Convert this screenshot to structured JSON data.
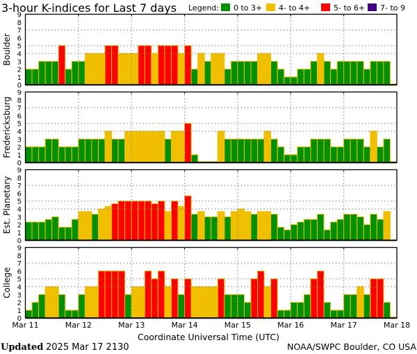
{
  "chart_data": {
    "type": "bar",
    "title": "3-hour K-indices for Last 7 days",
    "xlabel": "Coordinate Universal Time (UTC)",
    "x_tick_labels": [
      "Mar 11",
      "Mar 12",
      "Mar 13",
      "Mar 14",
      "Mar 15",
      "Mar 16",
      "Mar 17",
      "Mar 18"
    ],
    "y_tick_labels": [
      "0",
      "1",
      "2",
      "3",
      "4",
      "5",
      "6",
      "7",
      "8",
      "9"
    ],
    "ylim": [
      0,
      9
    ],
    "interval_hours": 3,
    "grid": {
      "horizontal_at": [
        4,
        5,
        7
      ],
      "vertical": "daily"
    },
    "legend": {
      "label": "Legend:",
      "placement": "top-right",
      "entries": [
        {
          "label": "0 to 3+",
          "color": "#009000"
        },
        {
          "label": "4- to 4+",
          "color": "#f0c000"
        },
        {
          "label": "5- to 6+",
          "color": "#ff0000"
        },
        {
          "label": "7- to 9",
          "color": "#400080"
        }
      ]
    },
    "series": [
      {
        "name": "Boulder",
        "values": [
          2,
          2,
          3,
          3,
          3,
          5,
          2,
          3,
          3,
          4,
          4,
          4,
          5,
          5,
          4,
          4,
          4,
          5,
          5,
          4,
          5,
          5,
          5,
          4,
          5,
          2,
          4,
          3,
          4,
          4,
          2,
          3,
          3,
          3,
          3,
          4,
          4,
          3,
          2,
          1,
          1,
          2,
          2,
          3,
          4,
          3,
          2,
          3,
          3,
          3,
          3,
          2,
          3,
          3,
          3,
          0
        ]
      },
      {
        "name": "Fredericksburg",
        "values": [
          2,
          2,
          2,
          3,
          3,
          2,
          2,
          2,
          3,
          3,
          3,
          3,
          4,
          3,
          3,
          4,
          4,
          4,
          4,
          4,
          4,
          3,
          4,
          4,
          5,
          1,
          0,
          0,
          0,
          4,
          3,
          3,
          3,
          3,
          3,
          3,
          4,
          3,
          2,
          1,
          1,
          2,
          2,
          3,
          3,
          3,
          2,
          2,
          3,
          3,
          3,
          2,
          4,
          2,
          3,
          0
        ]
      },
      {
        "name": "Est. Planetary",
        "values": [
          2.33,
          2.33,
          2.33,
          2.67,
          3,
          1.67,
          1.67,
          2.67,
          3.67,
          3.67,
          3.33,
          4,
          4.33,
          4.67,
          5,
          5,
          5,
          5,
          5,
          4.67,
          5,
          3.67,
          5,
          4.33,
          5.67,
          3.33,
          3.67,
          3,
          3,
          3.67,
          3,
          3.67,
          4,
          3.67,
          3.33,
          3.67,
          3.67,
          3.33,
          1.67,
          1.33,
          2,
          2.33,
          2.67,
          2.67,
          3.33,
          1.33,
          2.33,
          2.67,
          3.33,
          3.33,
          3,
          2,
          3.33,
          2.67,
          3.67
        ]
      },
      {
        "name": "College",
        "values": [
          1,
          2,
          3,
          4,
          4,
          3,
          1,
          1,
          3,
          4,
          4,
          6,
          6,
          6,
          6,
          3,
          4,
          4,
          6,
          5,
          6,
          4,
          5,
          3,
          5,
          4,
          4,
          4,
          4,
          5,
          3,
          3,
          3,
          2,
          5,
          6,
          4,
          5,
          1,
          1,
          2,
          2,
          3,
          5,
          6,
          2,
          1,
          1,
          3,
          3,
          4,
          3,
          5,
          5,
          2,
          0
        ]
      }
    ]
  },
  "footer": {
    "updated_label": "Updated",
    "updated_value": "2025 Mar 17 2130",
    "source": "NOAA/SWPC Boulder, CO USA"
  }
}
